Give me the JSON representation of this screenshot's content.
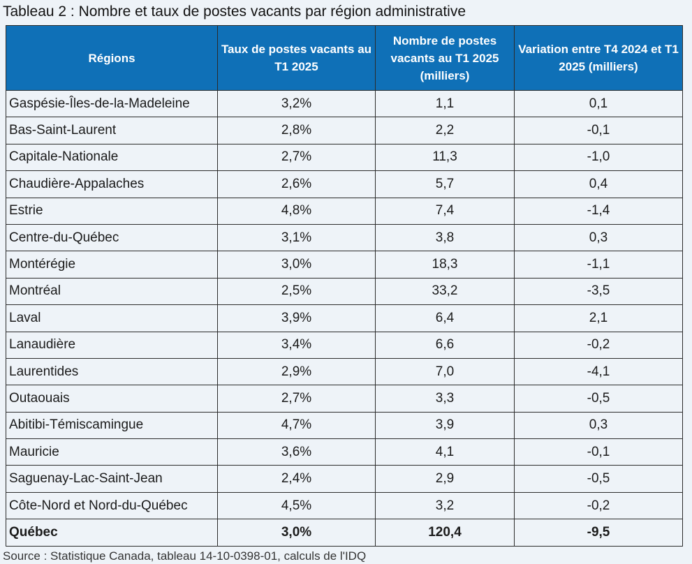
{
  "title": "Tableau 2 : Nombre et taux de postes vacants par région administrative",
  "headers": {
    "region": "Régions",
    "rate": "Taux de postes vacants au T1 2025",
    "count": "Nombre de postes vacants au T1 2025 (milliers)",
    "variation": "Variation entre T4 2024 et T1 2025 (milliers)"
  },
  "rows": [
    {
      "region": "Gaspésie-Îles-de-la-Madeleine",
      "rate": "3,2%",
      "count": "1,1",
      "variation": "0,1"
    },
    {
      "region": "Bas-Saint-Laurent",
      "rate": "2,8%",
      "count": "2,2",
      "variation": "-0,1"
    },
    {
      "region": "Capitale-Nationale",
      "rate": "2,7%",
      "count": "11,3",
      "variation": "-1,0"
    },
    {
      "region": "Chaudière-Appalaches",
      "rate": "2,6%",
      "count": "5,7",
      "variation": "0,4"
    },
    {
      "region": "Estrie",
      "rate": "4,8%",
      "count": "7,4",
      "variation": "-1,4"
    },
    {
      "region": "Centre-du-Québec",
      "rate": "3,1%",
      "count": "3,8",
      "variation": "0,3"
    },
    {
      "region": "Montérégie",
      "rate": "3,0%",
      "count": "18,3",
      "variation": "-1,1"
    },
    {
      "region": "Montréal",
      "rate": "2,5%",
      "count": "33,2",
      "variation": "-3,5"
    },
    {
      "region": "Laval",
      "rate": "3,9%",
      "count": "6,4",
      "variation": "2,1"
    },
    {
      "region": "Lanaudière",
      "rate": "3,4%",
      "count": "6,6",
      "variation": "-0,2"
    },
    {
      "region": "Laurentides",
      "rate": "2,9%",
      "count": "7,0",
      "variation": "-4,1"
    },
    {
      "region": "Outaouais",
      "rate": "2,7%",
      "count": "3,3",
      "variation": "-0,5"
    },
    {
      "region": "Abitibi-Témiscamingue",
      "rate": "4,7%",
      "count": "3,9",
      "variation": "0,3"
    },
    {
      "region": "Mauricie",
      "rate": "3,6%",
      "count": "4,1",
      "variation": "-0,1"
    },
    {
      "region": "Saguenay-Lac-Saint-Jean",
      "rate": "2,4%",
      "count": "2,9",
      "variation": "-0,5"
    },
    {
      "region": "Côte-Nord et Nord-du-Québec",
      "rate": "4,5%",
      "count": "3,2",
      "variation": "-0,2"
    }
  ],
  "total": {
    "region": "Québec",
    "rate": "3,0%",
    "count": "120,4",
    "variation": "-9,5"
  },
  "source": "Source : Statistique Canada, tableau 14-10-0398-01, calculs de l'IDQ",
  "colors": {
    "header_bg": "#0f70b7",
    "header_text": "#ffffff",
    "page_bg": "#eef3f8"
  }
}
